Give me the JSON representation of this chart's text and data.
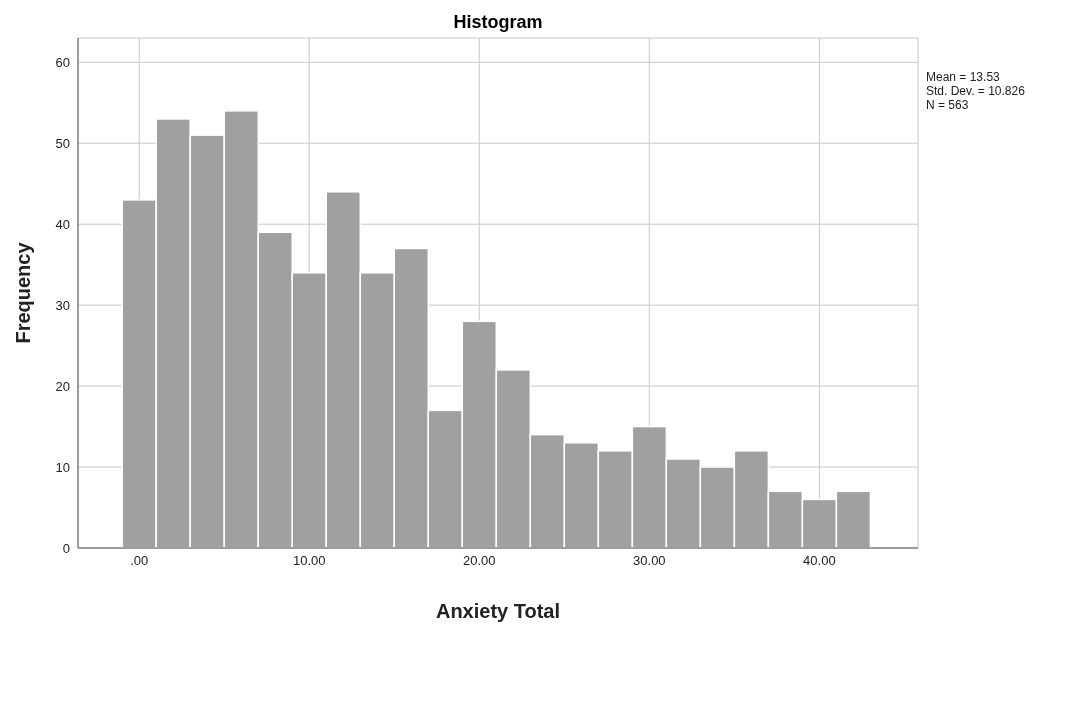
{
  "chart_data": {
    "type": "histogram",
    "title": "Histogram",
    "xlabel": "Anxiety Total",
    "ylabel": "Frequency",
    "bins": [
      -1,
      1,
      3,
      5,
      7,
      9,
      11,
      13,
      15,
      17,
      19,
      21,
      23,
      25,
      27,
      29,
      31,
      33,
      35,
      37,
      39,
      41,
      43
    ],
    "values": [
      43,
      53,
      51,
      54,
      39,
      34,
      44,
      34,
      37,
      17,
      28,
      22,
      14,
      13,
      12,
      15,
      11,
      10,
      12,
      7,
      6,
      7
    ],
    "color": "#a0a0a0",
    "xlim": [
      -3.6,
      45.8
    ],
    "xticks": [
      {
        "value": 0,
        "label": ".00"
      },
      {
        "value": 10,
        "label": "10.00"
      },
      {
        "value": 20,
        "label": "20.00"
      },
      {
        "value": 30,
        "label": "30.00"
      },
      {
        "value": 40,
        "label": "40.00"
      }
    ],
    "ylim": [
      0,
      63
    ],
    "yticks": [
      0,
      10,
      20,
      30,
      40,
      50,
      60
    ],
    "grid": true,
    "annotations": [
      "Mean = 13.53",
      "Std. Dev. = 10.826",
      "N = 563"
    ]
  }
}
